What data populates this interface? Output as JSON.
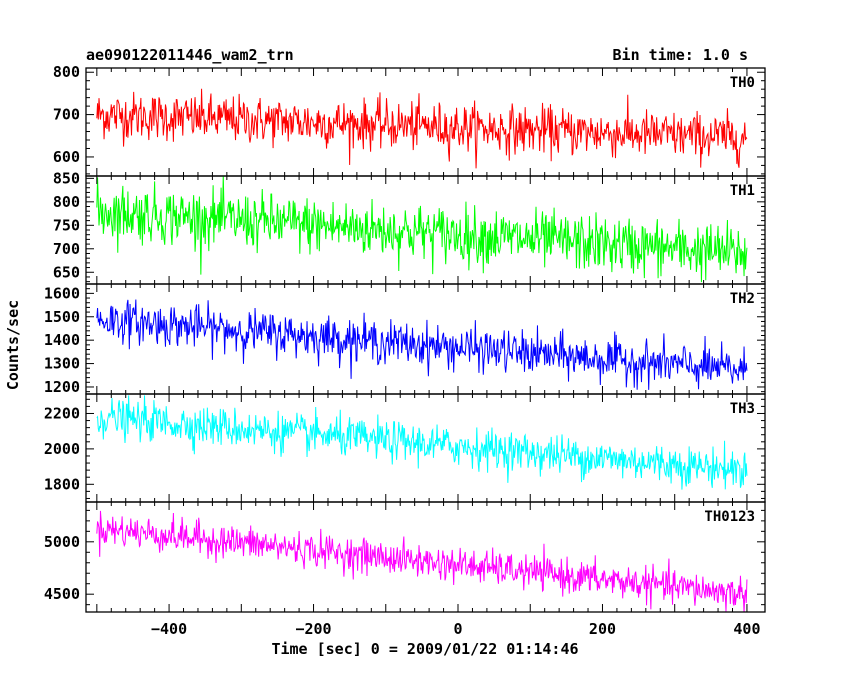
{
  "header": {
    "title": "ae090122011446_wam2_trn",
    "bin_time": "Bin time: 1.0 s"
  },
  "chart_data": {
    "type": "line",
    "xlabel": "Time [sec] 0 = 2009/01/22 01:14:46",
    "ylabel": "Counts/sec",
    "xlim": [
      -515,
      425
    ],
    "x_range": [
      -500,
      400
    ],
    "x_ticks": [
      -400,
      -200,
      0,
      200,
      400
    ],
    "grid": false,
    "panels": [
      {
        "name": "TH0",
        "color": "#ff0000",
        "ylim": [
          555,
          810
        ],
        "y_ticks": [
          600,
          700,
          800
        ],
        "trend": {
          "x": [
            -500,
            400
          ],
          "y": [
            700,
            645
          ]
        },
        "scatter_sd": 28
      },
      {
        "name": "TH1",
        "color": "#00ff00",
        "ylim": [
          625,
          855
        ],
        "y_ticks": [
          650,
          700,
          750,
          800,
          850
        ],
        "trend": {
          "x": [
            -500,
            400
          ],
          "y": [
            780,
            690
          ]
        },
        "scatter_sd": 30
      },
      {
        "name": "TH2",
        "color": "#0000ff",
        "ylim": [
          1170,
          1640
        ],
        "y_ticks": [
          1200,
          1300,
          1400,
          1500,
          1600
        ],
        "trend": {
          "x": [
            -500,
            400
          ],
          "y": [
            1490,
            1270
          ]
        },
        "scatter_sd": 45
      },
      {
        "name": "TH3",
        "color": "#00ffff",
        "ylim": [
          1700,
          2310
        ],
        "y_ticks": [
          1800,
          2000,
          2200
        ],
        "trend": {
          "x": [
            -500,
            400
          ],
          "y": [
            2180,
            1880
          ]
        },
        "scatter_sd": 55
      },
      {
        "name": "TH0123",
        "color": "#ff00ff",
        "ylim": [
          4330,
          5380
        ],
        "y_ticks": [
          4500,
          5000
        ],
        "trend": {
          "x": [
            -500,
            400
          ],
          "y": [
            5130,
            4500
          ]
        },
        "scatter_sd": 80
      }
    ]
  }
}
